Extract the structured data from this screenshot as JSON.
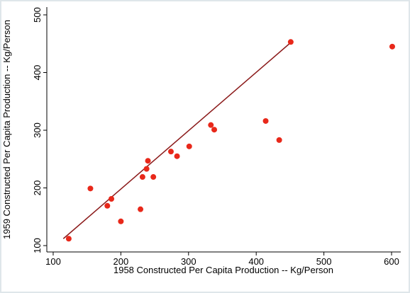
{
  "chart_data": {
    "type": "scatter",
    "x_label": "1958 Constructed Per Capita Production -- Kg/Person",
    "y_label": "1959 Constructed Per Capita Production -- Kg/Person",
    "x": [
      123,
      155,
      180,
      186,
      200,
      229,
      232,
      238,
      240,
      248,
      274,
      283,
      301,
      333,
      338,
      414,
      434,
      451,
      601
    ],
    "y": [
      112,
      199,
      169,
      181,
      142,
      163,
      219,
      233,
      247,
      219,
      263,
      255,
      272,
      309,
      301,
      316,
      283,
      453,
      445
    ],
    "color": "#e8281a",
    "fit": {
      "x": [
        115,
        451
      ],
      "y": [
        112,
        452
      ],
      "color": "#8b1a1a"
    },
    "xlim": [
      90.6,
      613.6
    ],
    "ylim": [
      89,
      513.5
    ],
    "xticks": [
      100,
      200,
      300,
      400,
      500,
      600
    ],
    "yticks": [
      100,
      200,
      300,
      400,
      500
    ]
  }
}
